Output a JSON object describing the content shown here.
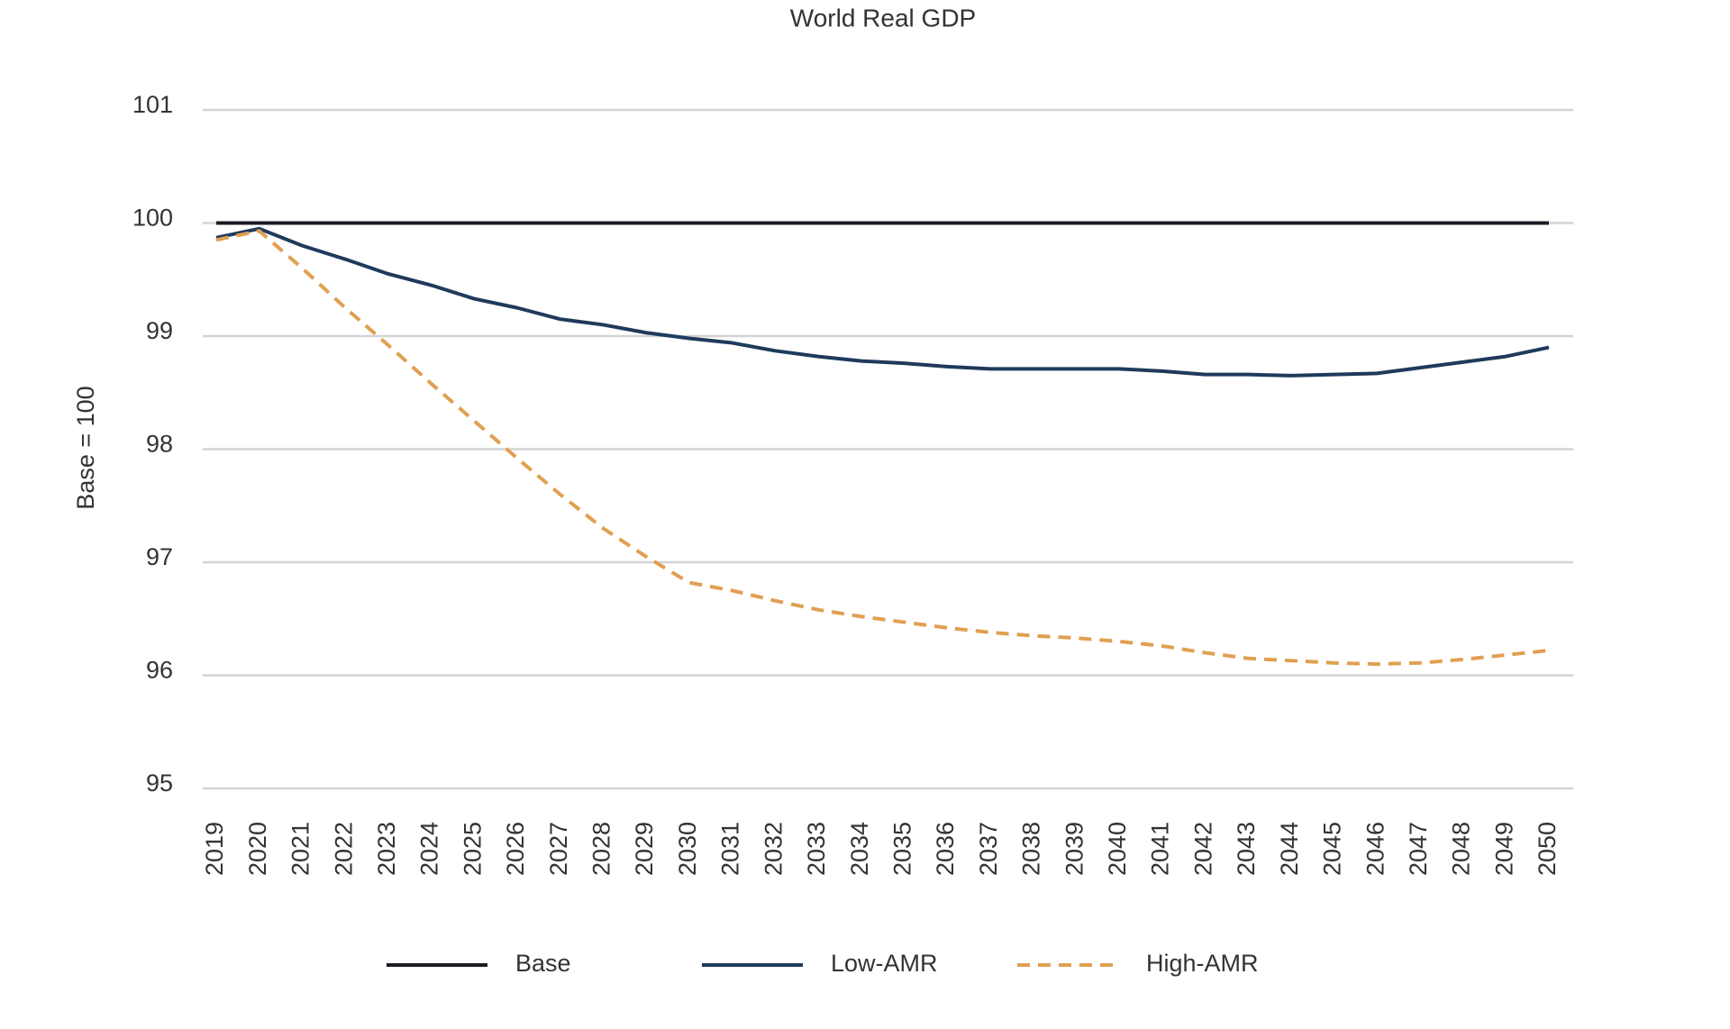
{
  "chart_data": {
    "type": "line",
    "title": "World Real GDP",
    "y_label": "Base = 100",
    "categories": [
      "2019",
      "2020",
      "2021",
      "2022",
      "2023",
      "2024",
      "2025",
      "2026",
      "2027",
      "2028",
      "2029",
      "2030",
      "2031",
      "2032",
      "2033",
      "2034",
      "2035",
      "2036",
      "2037",
      "2038",
      "2039",
      "2040",
      "2041",
      "2042",
      "2043",
      "2044",
      "2045",
      "2046",
      "2047",
      "2048",
      "2049",
      "2050"
    ],
    "series": [
      {
        "name": "Base",
        "color": "#1c1c24",
        "dashed": false,
        "values": [
          100,
          100,
          100,
          100,
          100,
          100,
          100,
          100,
          100,
          100,
          100,
          100,
          100,
          100,
          100,
          100,
          100,
          100,
          100,
          100,
          100,
          100,
          100,
          100,
          100,
          100,
          100,
          100,
          100,
          100,
          100,
          100
        ]
      },
      {
        "name": "Low-AMR",
        "color": "#1f3a5c",
        "dashed": false,
        "values": [
          99.87,
          99.95,
          99.8,
          99.68,
          99.55,
          99.45,
          99.33,
          99.25,
          99.15,
          99.1,
          99.03,
          98.98,
          98.94,
          98.87,
          98.82,
          98.78,
          98.76,
          98.73,
          98.71,
          98.71,
          98.71,
          98.71,
          98.69,
          98.66,
          98.66,
          98.65,
          98.66,
          98.67,
          98.72,
          98.77,
          98.82,
          98.9
        ]
      },
      {
        "name": "High-AMR",
        "color": "#e0a050",
        "dashed": true,
        "values": [
          99.85,
          99.93,
          99.6,
          99.25,
          98.92,
          98.58,
          98.25,
          97.92,
          97.6,
          97.3,
          97.05,
          96.82,
          96.75,
          96.66,
          96.58,
          96.52,
          96.47,
          96.42,
          96.38,
          96.35,
          96.33,
          96.3,
          96.26,
          96.2,
          96.15,
          96.13,
          96.11,
          96.1,
          96.11,
          96.14,
          96.18,
          96.22
        ]
      }
    ],
    "ylim": [
      95,
      101
    ],
    "yticks": [
      95,
      96,
      97,
      98,
      99,
      100,
      101
    ],
    "grid": true,
    "legend": "bottom"
  }
}
